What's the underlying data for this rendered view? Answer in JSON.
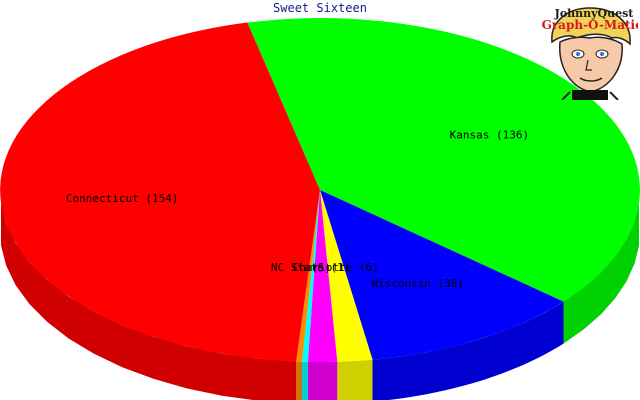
{
  "chart_data": {
    "type": "pie",
    "title": "Sweet Sixteen",
    "style": "3d",
    "slices": [
      {
        "label": "Kansas (136)",
        "value": 136,
        "color": "#00ff00"
      },
      {
        "label": "Wisconsin (38)",
        "value": 38,
        "color": "#0000ff"
      },
      {
        "label": "Charlotte (6)",
        "value": 6,
        "color": "#ffff00"
      },
      {
        "label": "(5)",
        "value": 5,
        "color": "#ff00ff"
      },
      {
        "label": "",
        "value": 1,
        "color": "#00ffff"
      },
      {
        "label": "NC State (1)",
        "value": 1,
        "color": "#ff8c00"
      },
      {
        "label": "Connecticut (154)",
        "value": 154,
        "color": "#ff0000"
      }
    ]
  },
  "logo": {
    "line1": "JohnnyQuest",
    "line2": "Graph-O-Matic"
  }
}
